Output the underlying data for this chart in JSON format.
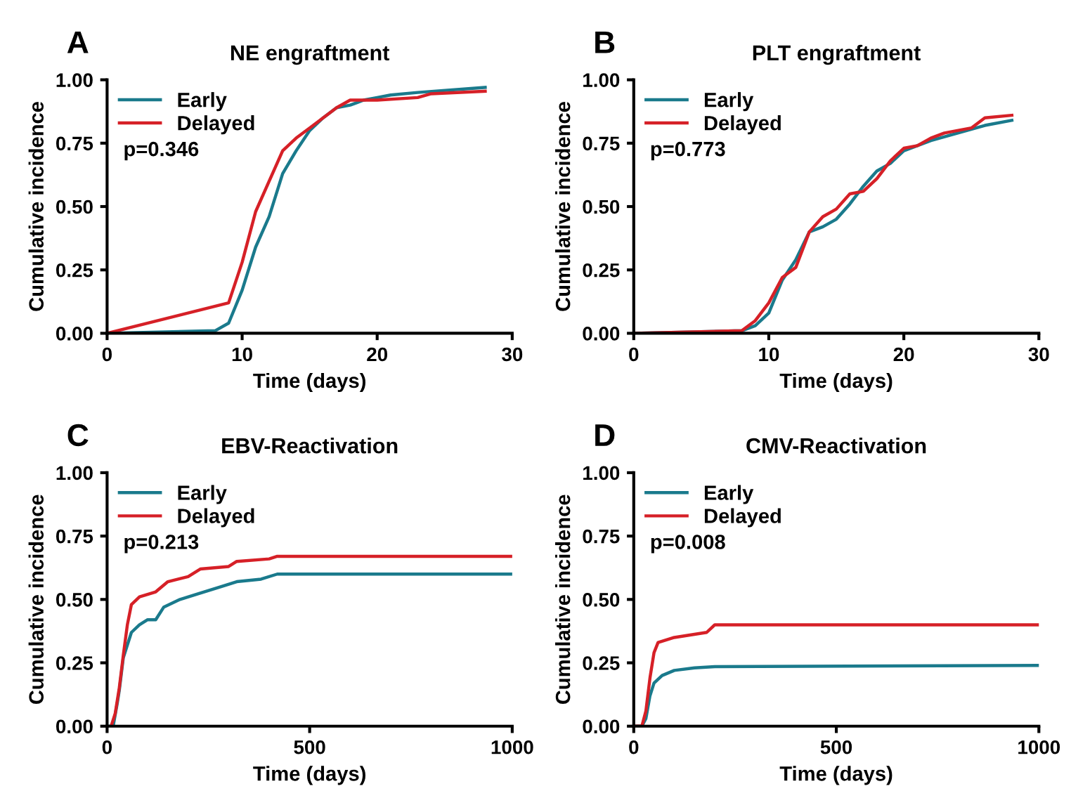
{
  "chart_data": [
    {
      "type": "line",
      "title": "NE engraftment",
      "xlabel": "Time (days)",
      "ylabel": "Cumulative incidence",
      "annotations": [
        "A",
        "p=0.346"
      ],
      "xlim": [
        0,
        30
      ],
      "xticks": [
        0,
        10,
        20,
        30
      ],
      "ylim": [
        0,
        1
      ],
      "yticks": [
        {
          "value": 0,
          "label": "0.00"
        },
        {
          "value": 0.25,
          "label": "0.25"
        },
        {
          "value": 0.5,
          "label": "0.50"
        },
        {
          "value": 0.75,
          "label": "0.75"
        },
        {
          "value": 1,
          "label": "1.00"
        }
      ],
      "grid": false,
      "legend": "top left",
      "series": [
        {
          "name": "Early",
          "color": "#1a7a8c",
          "x": [
            0,
            8,
            9,
            10,
            11,
            12,
            13,
            14,
            15,
            16,
            17,
            18,
            19,
            20,
            21,
            23,
            28
          ],
          "values": [
            0,
            0.01,
            0.04,
            0.17,
            0.34,
            0.46,
            0.63,
            0.72,
            0.8,
            0.85,
            0.89,
            0.9,
            0.92,
            0.93,
            0.94,
            0.95,
            0.97
          ]
        },
        {
          "name": "Delayed",
          "color": "#d62027",
          "x": [
            0,
            9,
            10,
            11,
            12,
            13,
            14,
            15,
            16,
            17,
            18,
            20,
            23,
            24,
            28
          ],
          "values": [
            0,
            0.12,
            0.28,
            0.48,
            0.6,
            0.72,
            0.77,
            0.81,
            0.85,
            0.89,
            0.92,
            0.92,
            0.93,
            0.945,
            0.955
          ]
        }
      ]
    },
    {
      "type": "line",
      "title": "PLT engraftment",
      "xlabel": "Time (days)",
      "ylabel": "Cumulative incidence",
      "annotations": [
        "B",
        "p=0.773"
      ],
      "xlim": [
        0,
        30
      ],
      "xticks": [
        0,
        10,
        20,
        30
      ],
      "ylim": [
        0,
        1
      ],
      "yticks": [
        {
          "value": 0,
          "label": "0.00"
        },
        {
          "value": 0.25,
          "label": "0.25"
        },
        {
          "value": 0.5,
          "label": "0.50"
        },
        {
          "value": 0.75,
          "label": "0.75"
        },
        {
          "value": 1,
          "label": "1.00"
        }
      ],
      "grid": false,
      "legend": "top left",
      "series": [
        {
          "name": "Early",
          "color": "#1a7a8c",
          "x": [
            0,
            8,
            9,
            10,
            11,
            12,
            13,
            14,
            15,
            16,
            17,
            18,
            19,
            20,
            21,
            22,
            24,
            26,
            28
          ],
          "values": [
            0,
            0.01,
            0.03,
            0.08,
            0.21,
            0.29,
            0.4,
            0.42,
            0.45,
            0.51,
            0.58,
            0.64,
            0.67,
            0.72,
            0.74,
            0.76,
            0.79,
            0.82,
            0.84
          ]
        },
        {
          "name": "Delayed",
          "color": "#d62027",
          "x": [
            0,
            8,
            9,
            10,
            11,
            12,
            13,
            14,
            15,
            16,
            17,
            18,
            19,
            20,
            21,
            22,
            23,
            25,
            26,
            28
          ],
          "values": [
            0,
            0.01,
            0.05,
            0.12,
            0.22,
            0.26,
            0.4,
            0.46,
            0.49,
            0.55,
            0.56,
            0.61,
            0.68,
            0.73,
            0.74,
            0.77,
            0.79,
            0.81,
            0.85,
            0.86
          ]
        }
      ]
    },
    {
      "type": "line",
      "title": "EBV-Reactivation",
      "xlabel": "Time (days)",
      "ylabel": "Cumulative incidence",
      "annotations": [
        "C",
        "p=0.213"
      ],
      "xlim": [
        0,
        1000
      ],
      "xticks": [
        0,
        500,
        1000
      ],
      "ylim": [
        0,
        1
      ],
      "yticks": [
        {
          "value": 0,
          "label": "0.00"
        },
        {
          "value": 0.25,
          "label": "0.25"
        },
        {
          "value": 0.5,
          "label": "0.50"
        },
        {
          "value": 0.75,
          "label": "0.75"
        },
        {
          "value": 1,
          "label": "1.00"
        }
      ],
      "grid": false,
      "legend": "top left",
      "series": [
        {
          "name": "Early",
          "color": "#1a7a8c",
          "x": [
            0,
            15,
            25,
            30,
            40,
            50,
            60,
            80,
            100,
            120,
            140,
            180,
            220,
            280,
            320,
            380,
            420,
            1000
          ],
          "values": [
            0,
            0,
            0.09,
            0.14,
            0.27,
            0.32,
            0.37,
            0.4,
            0.42,
            0.42,
            0.47,
            0.5,
            0.52,
            0.55,
            0.57,
            0.58,
            0.6,
            0.6
          ]
        },
        {
          "name": "Delayed",
          "color": "#d62027",
          "x": [
            10,
            20,
            30,
            40,
            50,
            60,
            80,
            120,
            150,
            200,
            230,
            300,
            320,
            400,
            420,
            1000
          ],
          "values": [
            0,
            0.05,
            0.15,
            0.28,
            0.4,
            0.48,
            0.51,
            0.53,
            0.57,
            0.59,
            0.62,
            0.63,
            0.65,
            0.66,
            0.67,
            0.67
          ]
        }
      ]
    },
    {
      "type": "line",
      "title": "CMV-Reactivation",
      "xlabel": "Time (days)",
      "ylabel": "Cumulative incidence",
      "annotations": [
        "D",
        "p=0.008"
      ],
      "xlim": [
        0,
        1000
      ],
      "xticks": [
        0,
        500,
        1000
      ],
      "ylim": [
        0,
        1
      ],
      "yticks": [
        {
          "value": 0,
          "label": "0.00"
        },
        {
          "value": 0.25,
          "label": "0.25"
        },
        {
          "value": 0.5,
          "label": "0.50"
        },
        {
          "value": 0.75,
          "label": "0.75"
        },
        {
          "value": 1,
          "label": "1.00"
        }
      ],
      "grid": false,
      "legend": "top left",
      "series": [
        {
          "name": "Early",
          "color": "#1a7a8c",
          "x": [
            0,
            20,
            30,
            40,
            50,
            70,
            100,
            150,
            200,
            1000
          ],
          "values": [
            0,
            0,
            0.03,
            0.12,
            0.17,
            0.2,
            0.22,
            0.23,
            0.235,
            0.24
          ]
        },
        {
          "name": "Delayed",
          "color": "#d62027",
          "x": [
            0,
            20,
            30,
            40,
            50,
            60,
            100,
            180,
            200,
            1000
          ],
          "values": [
            0,
            0,
            0.06,
            0.19,
            0.29,
            0.33,
            0.35,
            0.37,
            0.4,
            0.4
          ]
        }
      ]
    }
  ]
}
